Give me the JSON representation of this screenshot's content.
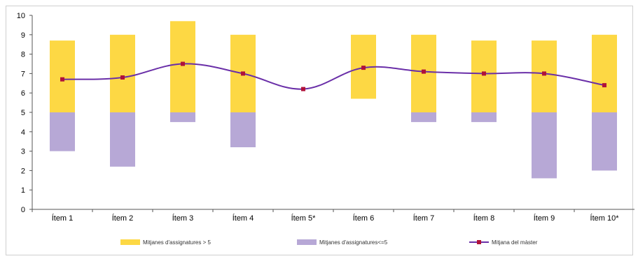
{
  "chart_data": {
    "type": "bar",
    "title": "",
    "xlabel": "",
    "ylabel": "",
    "ylim": [
      0,
      10
    ],
    "yticks": [
      "0",
      "1",
      "2",
      "3",
      "4",
      "5",
      "6",
      "7",
      "8",
      "9",
      "10"
    ],
    "baseline": 5,
    "categories": [
      "Ítem 1",
      "Ítem 2",
      "Ítem 3",
      "Ítem 4",
      "Ítem 5*",
      "Ítem 6",
      "Ítem 7",
      "Ítem 8",
      "Ítem 9",
      "Ítem 10*"
    ],
    "series": [
      {
        "name": "Mitjanes d'assignatures > 5",
        "kind": "bar-range",
        "color": "#fdd844",
        "low": [
          5.0,
          5.0,
          5.0,
          5.0,
          null,
          5.7,
          5.0,
          5.0,
          5.0,
          5.0
        ],
        "high": [
          8.7,
          9.0,
          9.7,
          9.0,
          null,
          9.0,
          9.0,
          8.7,
          8.7,
          9.0
        ]
      },
      {
        "name": "Mitjanes d'assignatures<=5",
        "kind": "bar-range",
        "color": "#b7a8d6",
        "low": [
          3.0,
          2.2,
          4.5,
          3.2,
          null,
          null,
          4.5,
          4.5,
          1.6,
          2.0
        ],
        "high": [
          5.0,
          5.0,
          5.0,
          5.0,
          null,
          null,
          5.0,
          5.0,
          5.0,
          5.0
        ]
      },
      {
        "name": "Mitjana del màster",
        "kind": "line",
        "color": "#6a2fa8",
        "marker_color": "#b0123a",
        "values": [
          6.7,
          6.8,
          7.5,
          7.0,
          6.2,
          7.3,
          7.1,
          7.0,
          7.0,
          6.4
        ]
      }
    ],
    "legend_position": "bottom",
    "grid": false
  }
}
